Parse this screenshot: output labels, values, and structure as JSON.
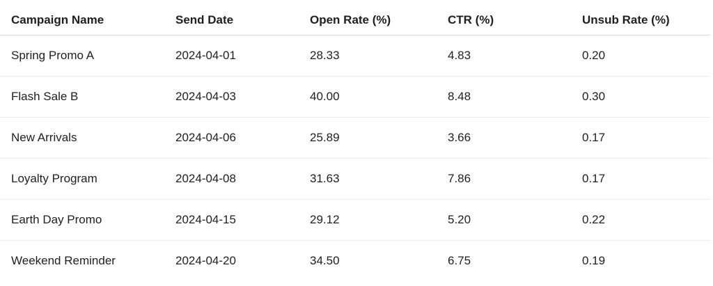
{
  "table": {
    "header": [
      "Campaign Name",
      "Send Date",
      "Open Rate (%)",
      "CTR (%)",
      "Unsub Rate (%)"
    ],
    "rows": [
      [
        "Spring Promo A",
        "2024-04-01",
        "28.33",
        "4.83",
        "0.20"
      ],
      [
        "Flash Sale B",
        "2024-04-03",
        "40.00",
        "8.48",
        "0.30"
      ],
      [
        "New Arrivals",
        "2024-04-06",
        "25.89",
        "3.66",
        "0.17"
      ],
      [
        "Loyalty Program",
        "2024-04-08",
        "31.63",
        "7.86",
        "0.17"
      ],
      [
        "Earth Day Promo",
        "2024-04-15",
        "29.12",
        "5.20",
        "0.22"
      ],
      [
        "Weekend Reminder",
        "2024-04-20",
        "34.50",
        "6.75",
        "0.19"
      ]
    ]
  }
}
